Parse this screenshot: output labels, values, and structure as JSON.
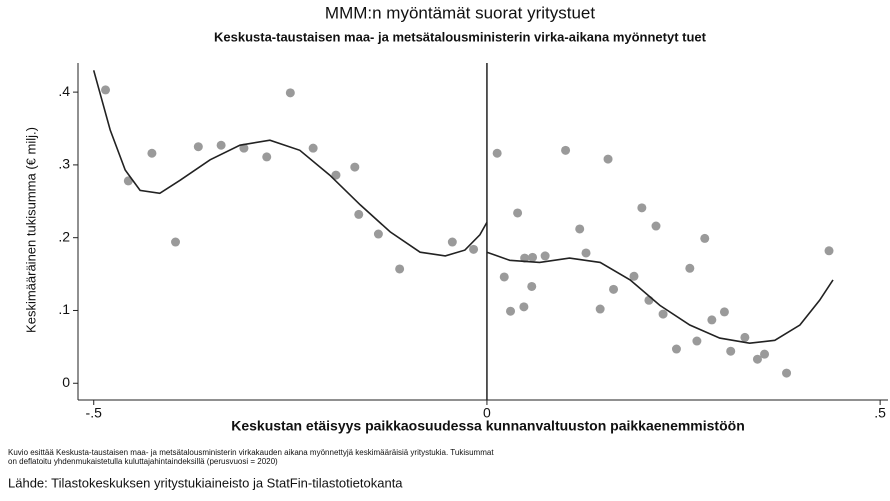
{
  "chart_data": {
    "type": "scatter",
    "title": "MMM:n myöntämät suorat yritystuet",
    "subtitle": "Keskusta-taustaisen maa- ja metsätalousministerin virka-aikana myönnetyt tuet",
    "xlabel": "Keskustan etäisyys paikkaosuudessa kunnanvaltuuston paikkaenemmistöön",
    "ylabel": "Keskimääräinen tukisumma (€ milj.)",
    "notes": [
      "Kuvio esittää Keskusta-taustaisen maa- ja metsätalousministerin virkakauden aikana myönnettyjä keskimääräisiä yritystukia. Tukisummat",
      "on deflatoitu yhdenmukaistetulla kuluttajahintaindeksillä (perusvuosi = 2020)"
    ],
    "source": "Lähde: Tilastokeskuksen yritystukiaineisto ja StatFin-tilastotietokanta",
    "xlim": [
      -0.52,
      0.51
    ],
    "ylim": [
      -0.023,
      0.44
    ],
    "xticks": [
      {
        "value": -0.5,
        "label": "-.5"
      },
      0,
      {
        "value": 0.5,
        "label": ".5"
      }
    ],
    "yticks": [
      0,
      {
        "value": 0.1,
        "label": ".1"
      },
      {
        "value": 0.2,
        "label": ".2"
      },
      {
        "value": 0.3,
        "label": ".3"
      },
      {
        "value": 0.4,
        "label": ".4"
      }
    ],
    "vline": 0,
    "series": [
      {
        "mode": "markers",
        "color": "#9a9a9a",
        "x": [
          -0.485,
          -0.456,
          -0.426,
          -0.396,
          -0.367,
          -0.338,
          -0.309,
          -0.28,
          -0.25,
          -0.221,
          -0.192,
          -0.168,
          -0.163,
          -0.138,
          -0.111,
          -0.044,
          -0.017,
          0.013,
          0.022,
          0.03,
          0.039,
          0.048,
          0.058,
          0.074,
          0.057,
          0.047,
          0.1,
          0.118,
          0.126,
          0.144,
          0.154,
          0.161,
          0.187,
          0.197,
          0.206,
          0.215,
          0.224,
          0.241,
          0.258,
          0.267,
          0.277,
          0.286,
          0.302,
          0.31,
          0.328,
          0.344,
          0.353,
          0.381,
          0.435
        ],
        "values": [
          0.403,
          0.278,
          0.316,
          0.194,
          0.325,
          0.327,
          0.323,
          0.311,
          0.399,
          0.323,
          0.286,
          0.297,
          0.232,
          0.205,
          0.157,
          0.194,
          0.184,
          0.316,
          0.146,
          0.099,
          0.234,
          0.172,
          0.173,
          0.175,
          0.133,
          0.105,
          0.32,
          0.212,
          0.179,
          0.102,
          0.308,
          0.129,
          0.147,
          0.241,
          0.114,
          0.216,
          0.095,
          0.047,
          0.158,
          0.058,
          0.199,
          0.087,
          0.098,
          0.044,
          0.063,
          0.033,
          0.04,
          0.014,
          0.182
        ]
      },
      {
        "mode": "lines",
        "color": "#222222",
        "x": [
          -0.5,
          -0.479,
          -0.46,
          -0.441,
          -0.416,
          -0.39,
          -0.352,
          -0.314,
          -0.276,
          -0.238,
          -0.2,
          -0.161,
          -0.123,
          -0.085,
          -0.053,
          -0.028,
          -0.009,
          0
        ],
        "values": [
          0.43,
          0.348,
          0.293,
          0.265,
          0.261,
          0.279,
          0.307,
          0.327,
          0.334,
          0.32,
          0.286,
          0.245,
          0.208,
          0.18,
          0.175,
          0.183,
          0.204,
          0.221
        ]
      },
      {
        "mode": "lines",
        "color": "#222222",
        "x": [
          0,
          0.029,
          0.067,
          0.105,
          0.144,
          0.182,
          0.22,
          0.258,
          0.296,
          0.334,
          0.366,
          0.398,
          0.423,
          0.44
        ],
        "values": [
          0.18,
          0.169,
          0.166,
          0.172,
          0.166,
          0.142,
          0.107,
          0.08,
          0.062,
          0.055,
          0.059,
          0.08,
          0.114,
          0.142
        ]
      }
    ]
  }
}
